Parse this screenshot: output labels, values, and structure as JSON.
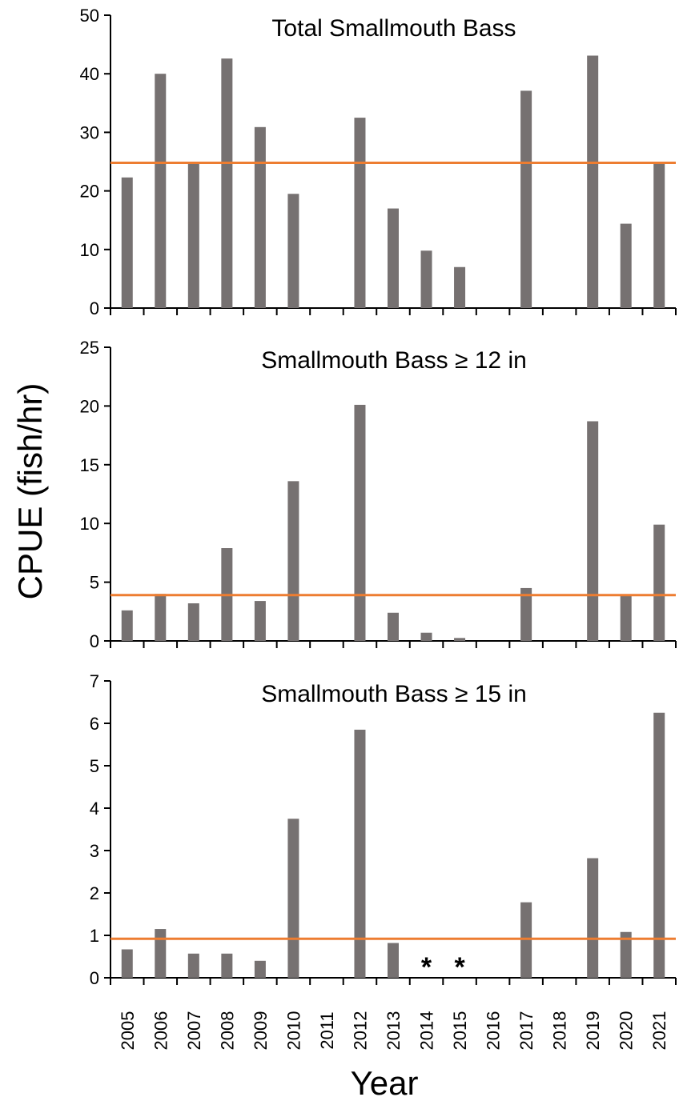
{
  "chart_data": {
    "type": "bar",
    "ylabel": "CPUE (fish/hr)",
    "xlabel": "Year",
    "categories": [
      "2005",
      "2006",
      "2007",
      "2008",
      "2009",
      "2010",
      "2011",
      "2012",
      "2013",
      "2014",
      "2015",
      "2016",
      "2017",
      "2018",
      "2019",
      "2020",
      "2021"
    ],
    "colors": {
      "bar": "#767171",
      "reference_line": "#ED7D31",
      "axis": "#000000"
    },
    "panels": [
      {
        "title": "Total Smallmouth Bass",
        "ylim": [
          0,
          50
        ],
        "yticks": [
          0,
          10,
          20,
          30,
          40,
          50
        ],
        "values": [
          22.3,
          40,
          24.7,
          42.6,
          30.9,
          19.5,
          null,
          32.5,
          17,
          9.8,
          7,
          null,
          37.1,
          null,
          43.1,
          14.4,
          24.8
        ],
        "reference_line": 24.8,
        "annotations": []
      },
      {
        "title": "Smallmouth Bass ≥ 12 in",
        "ylim": [
          0,
          25
        ],
        "yticks": [
          0,
          5,
          10,
          15,
          20,
          25
        ],
        "values": [
          2.6,
          4,
          3.2,
          7.9,
          3.4,
          13.6,
          null,
          20.1,
          2.4,
          0.7,
          0.25,
          null,
          4.5,
          null,
          18.7,
          3.9,
          9.9
        ],
        "reference_line": 3.9,
        "annotations": []
      },
      {
        "title": "Smallmouth Bass ≥ 15 in",
        "ylim": [
          0,
          7
        ],
        "yticks": [
          0,
          1,
          2,
          3,
          4,
          5,
          6,
          7
        ],
        "values": [
          0.67,
          1.15,
          0.57,
          0.57,
          0.4,
          3.75,
          null,
          5.85,
          0.82,
          null,
          null,
          null,
          1.78,
          null,
          2.82,
          1.08,
          6.25
        ],
        "reference_line": 0.92,
        "annotations": [
          {
            "category": "2014",
            "text": "*"
          },
          {
            "category": "2015",
            "text": "*"
          }
        ]
      }
    ]
  }
}
